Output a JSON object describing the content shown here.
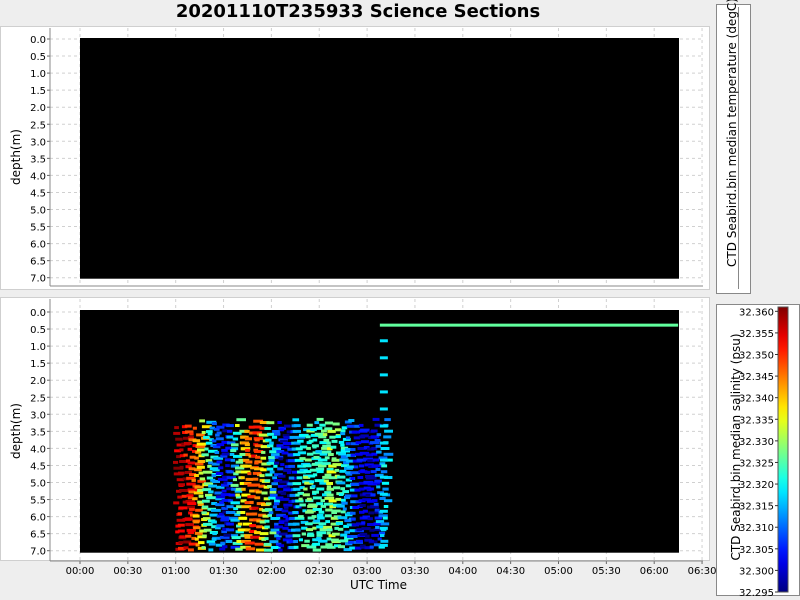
{
  "title": "20201110T235933 Science Sections",
  "chart_data": [
    {
      "type": "heatmap",
      "ylabel": "depth(m)",
      "xlabel": "",
      "yticks": [
        "0.0",
        "0.5",
        "1.0",
        "1.5",
        "2.0",
        "2.5",
        "3.0",
        "3.5",
        "4.0",
        "4.5",
        "5.0",
        "5.5",
        "6.0",
        "6.5",
        "7.0"
      ],
      "ylim": [
        0,
        7
      ],
      "y_inverted": true,
      "background": "#000000",
      "colorbar_label": "CTD Seabird.bin median temperature (degC)",
      "colorbar_ticks": [],
      "values": []
    },
    {
      "type": "heatmap",
      "ylabel": "depth(m)",
      "xlabel": "UTC Time",
      "xticks": [
        "00:00",
        "00:30",
        "01:00",
        "01:30",
        "02:00",
        "02:30",
        "03:00",
        "03:30",
        "04:00",
        "04:30",
        "05:00",
        "05:30",
        "06:00",
        "06:30"
      ],
      "yticks": [
        "0.0",
        "0.5",
        "1.0",
        "1.5",
        "2.0",
        "2.5",
        "3.0",
        "3.5",
        "4.0",
        "4.5",
        "5.0",
        "5.5",
        "6.0",
        "6.5",
        "7.0"
      ],
      "ylim": [
        0,
        7
      ],
      "y_inverted": true,
      "background": "#000000",
      "colorbar_label": "CTD Seabird.bin median salinity (psu)",
      "colorbar_ticks": [
        "32.360",
        "32.355",
        "32.350",
        "32.345",
        "32.340",
        "32.335",
        "32.330",
        "32.325",
        "32.320",
        "32.315",
        "32.310",
        "32.305",
        "32.300",
        "32.295"
      ],
      "colorbar_range": [
        32.295,
        32.361
      ],
      "colormap": "jet",
      "surface_line": {
        "x_start": "03:08",
        "x_end": "06:15",
        "depth": 0.4,
        "value": 32.326
      },
      "profile_columns_minutes": [
        60,
        63,
        66,
        69,
        72,
        75,
        78,
        81,
        84,
        87,
        90,
        93,
        96,
        99,
        102,
        105,
        108,
        111,
        114,
        117,
        120,
        123,
        126,
        129,
        132,
        135,
        138,
        141,
        144,
        147,
        150,
        153,
        156,
        159,
        162,
        165,
        168,
        171,
        174,
        177,
        180,
        183,
        186,
        189
      ],
      "profile_column_values": [
        32.358,
        32.356,
        32.354,
        32.35,
        32.344,
        32.336,
        32.326,
        32.318,
        32.312,
        32.306,
        32.3,
        32.31,
        32.322,
        32.332,
        32.34,
        32.346,
        32.35,
        32.344,
        32.334,
        32.324,
        32.314,
        32.304,
        32.298,
        32.302,
        32.31,
        32.318,
        32.322,
        32.326,
        32.324,
        32.32,
        32.322,
        32.326,
        32.33,
        32.326,
        32.32,
        32.316,
        32.312,
        32.306,
        32.302,
        32.3,
        32.298,
        32.302,
        32.31,
        32.316
      ]
    }
  ]
}
